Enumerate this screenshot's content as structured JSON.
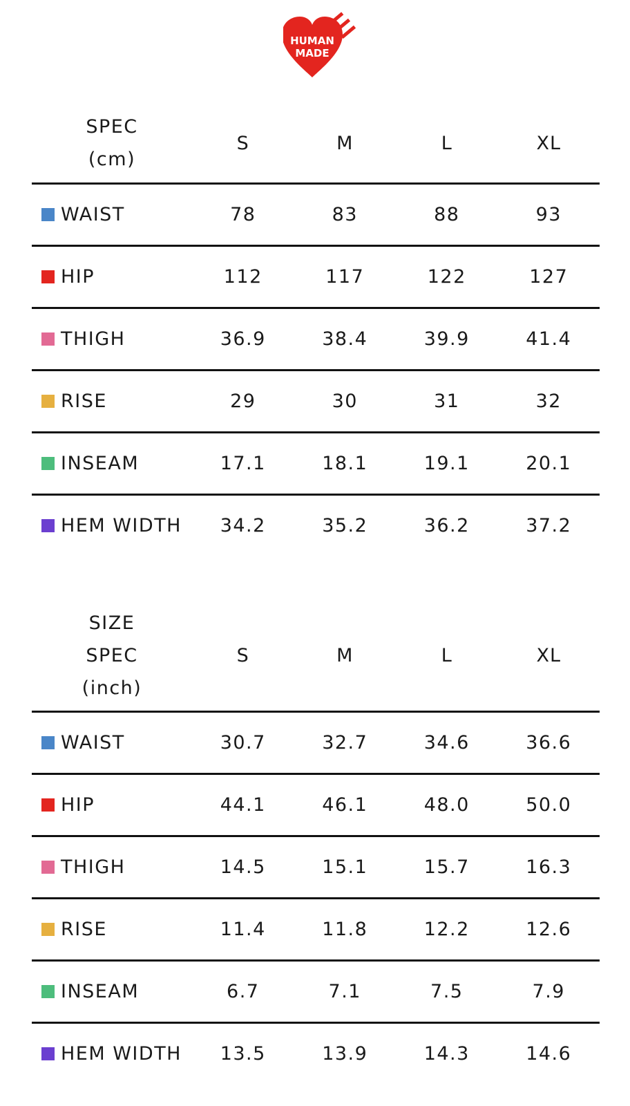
{
  "logo": {
    "line1": "HUMAN",
    "line2": "MADE",
    "color": "#e3251f"
  },
  "table_cm": {
    "header": {
      "label_lines": [
        "SPEC",
        "(cm)"
      ],
      "sizes": [
        "S",
        "M",
        "L",
        "XL"
      ]
    },
    "rows": [
      {
        "label": "WAIST",
        "color": "#4a86c8",
        "values": [
          "78",
          "83",
          "88",
          "93"
        ]
      },
      {
        "label": "HIP",
        "color": "#e3251f",
        "values": [
          "112",
          "117",
          "122",
          "127"
        ]
      },
      {
        "label": "THIGH",
        "color": "#e26a94",
        "values": [
          "36.9",
          "38.4",
          "39.9",
          "41.4"
        ]
      },
      {
        "label": "RISE",
        "color": "#e6b040",
        "values": [
          "29",
          "30",
          "31",
          "32"
        ]
      },
      {
        "label": "INSEAM",
        "color": "#4dbd7c",
        "values": [
          "17.1",
          "18.1",
          "19.1",
          "20.1"
        ]
      },
      {
        "label": "HEM WIDTH",
        "color": "#6b3fd0",
        "values": [
          "34.2",
          "35.2",
          "36.2",
          "37.2"
        ]
      }
    ]
  },
  "table_inch": {
    "header": {
      "label_lines": [
        "SIZE",
        "SPEC",
        "(inch)"
      ],
      "sizes": [
        "S",
        "M",
        "L",
        "XL"
      ]
    },
    "rows": [
      {
        "label": "WAIST",
        "color": "#4a86c8",
        "values": [
          "30.7",
          "32.7",
          "34.6",
          "36.6"
        ]
      },
      {
        "label": "HIP",
        "color": "#e3251f",
        "values": [
          "44.1",
          "46.1",
          "48.0",
          "50.0"
        ]
      },
      {
        "label": "THIGH",
        "color": "#e26a94",
        "values": [
          "14.5",
          "15.1",
          "15.7",
          "16.3"
        ]
      },
      {
        "label": "RISE",
        "color": "#e6b040",
        "values": [
          "11.4",
          "11.8",
          "12.2",
          "12.6"
        ]
      },
      {
        "label": "INSEAM",
        "color": "#4dbd7c",
        "values": [
          "6.7",
          "7.1",
          "7.5",
          "7.9"
        ]
      },
      {
        "label": "HEM WIDTH",
        "color": "#6b3fd0",
        "values": [
          "13.5",
          "13.9",
          "14.3",
          "14.6"
        ]
      }
    ]
  }
}
